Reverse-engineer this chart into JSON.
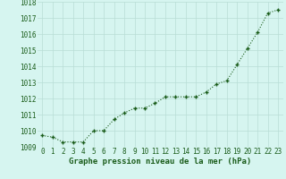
{
  "x": [
    0,
    1,
    2,
    3,
    4,
    5,
    6,
    7,
    8,
    9,
    10,
    11,
    12,
    13,
    14,
    15,
    16,
    17,
    18,
    19,
    20,
    21,
    22,
    23
  ],
  "y": [
    1009.7,
    1009.6,
    1009.3,
    1009.3,
    1009.3,
    1010.0,
    1010.0,
    1010.7,
    1011.1,
    1011.4,
    1011.4,
    1011.7,
    1012.1,
    1012.1,
    1012.1,
    1012.1,
    1012.4,
    1012.9,
    1013.1,
    1014.1,
    1015.1,
    1016.1,
    1017.3,
    1017.5
  ],
  "ylim": [
    1009,
    1018
  ],
  "yticks": [
    1009,
    1010,
    1011,
    1012,
    1013,
    1014,
    1015,
    1016,
    1017,
    1018
  ],
  "xticks": [
    0,
    1,
    2,
    3,
    4,
    5,
    6,
    7,
    8,
    9,
    10,
    11,
    12,
    13,
    14,
    15,
    16,
    17,
    18,
    19,
    20,
    21,
    22,
    23
  ],
  "xlabel": "Graphe pression niveau de la mer (hPa)",
  "line_color": "#1a5c1a",
  "marker_color": "#1a5c1a",
  "bg_color": "#d6f5f0",
  "grid_color": "#b8ddd6",
  "xlabel_color": "#1a5c1a",
  "xlabel_fontsize": 6.5,
  "tick_fontsize": 5.5,
  "line_width": 0.8,
  "marker_size": 2.5
}
